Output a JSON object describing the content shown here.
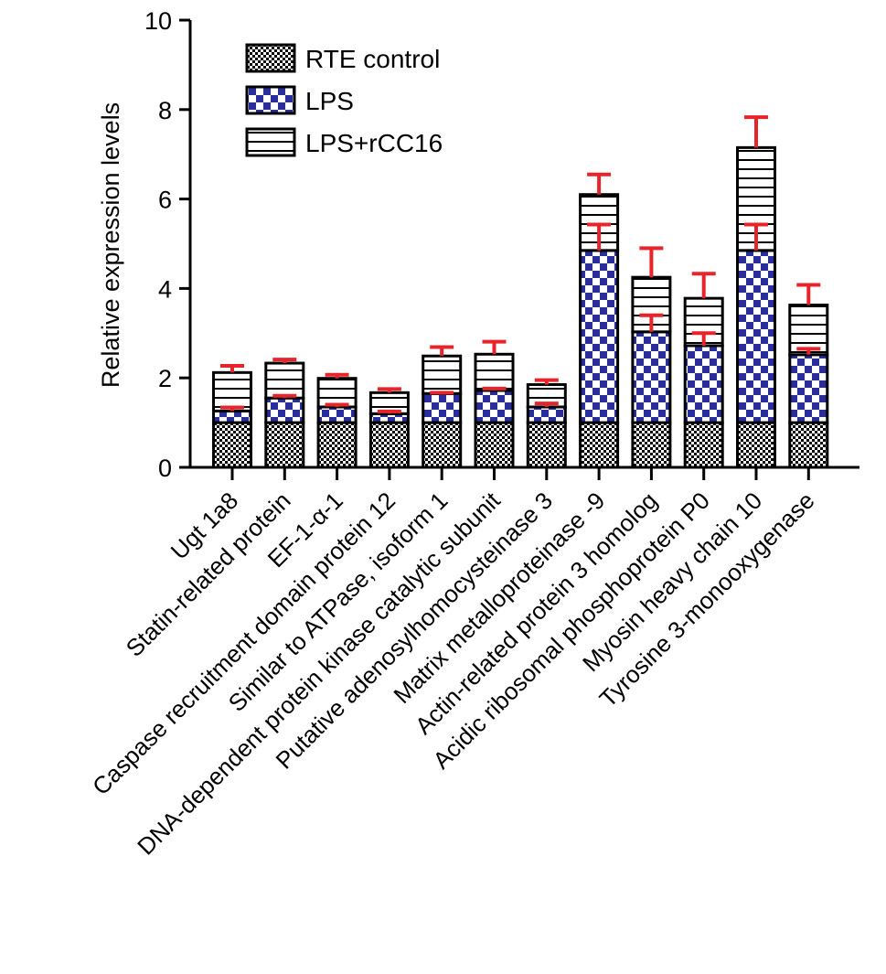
{
  "chart_data": {
    "type": "bar",
    "stacked": true,
    "title": "",
    "xlabel": "",
    "ylabel": "Relative expression levels",
    "ylim": [
      0,
      10
    ],
    "yticks": [
      "0",
      "2",
      "4",
      "6",
      "8",
      "10"
    ],
    "grid": false,
    "legend_position": "top-left",
    "categories": [
      "Ugt 1a8",
      "Statin-related protein",
      "EF-1-α-1",
      "Caspase recruitment domain protein 12",
      "Similar to ATPase, isoform 1",
      "DNA-dependent protein kinase catalytic subunit",
      "Putative adenosylhomocysteinase 3",
      "Matrix metalloproteinase -9",
      "Actin-related protein 3 homolog",
      "Acidic ribosomal phosphoprotein P0",
      "Myosin heavy chain 10",
      "Tyrosine 3-monooxygenase"
    ],
    "series": [
      {
        "name": "RTE control",
        "pattern": "checker-small",
        "color": "#000000",
        "totals": [
          1.0,
          1.0,
          1.0,
          1.0,
          1.0,
          1.0,
          1.0,
          1.0,
          1.0,
          1.0,
          1.0,
          1.0
        ],
        "errors": [
          0,
          0,
          0,
          0,
          0,
          0,
          0,
          0,
          0,
          0,
          0,
          0
        ]
      },
      {
        "name": "LPS",
        "pattern": "checker-large",
        "color": "#2a2e9a",
        "totals": [
          1.26,
          1.55,
          1.35,
          1.2,
          1.65,
          1.72,
          1.35,
          4.85,
          3.03,
          2.72,
          4.85,
          2.52
        ],
        "errors": [
          0.08,
          0.05,
          0.05,
          0.05,
          0.02,
          0.04,
          0.08,
          0.58,
          0.37,
          0.28,
          0.58,
          0.13
        ]
      },
      {
        "name": "LPS+rCC16",
        "pattern": "horizontal-lines",
        "color": "#000000",
        "totals": [
          2.12,
          2.33,
          1.99,
          1.67,
          2.49,
          2.53,
          1.85,
          6.1,
          4.25,
          3.78,
          7.15,
          3.63
        ],
        "errors": [
          0.15,
          0.08,
          0.08,
          0.08,
          0.2,
          0.28,
          0.1,
          0.45,
          0.65,
          0.55,
          0.68,
          0.45
        ]
      }
    ],
    "error_bar_color": "#e8242a"
  }
}
